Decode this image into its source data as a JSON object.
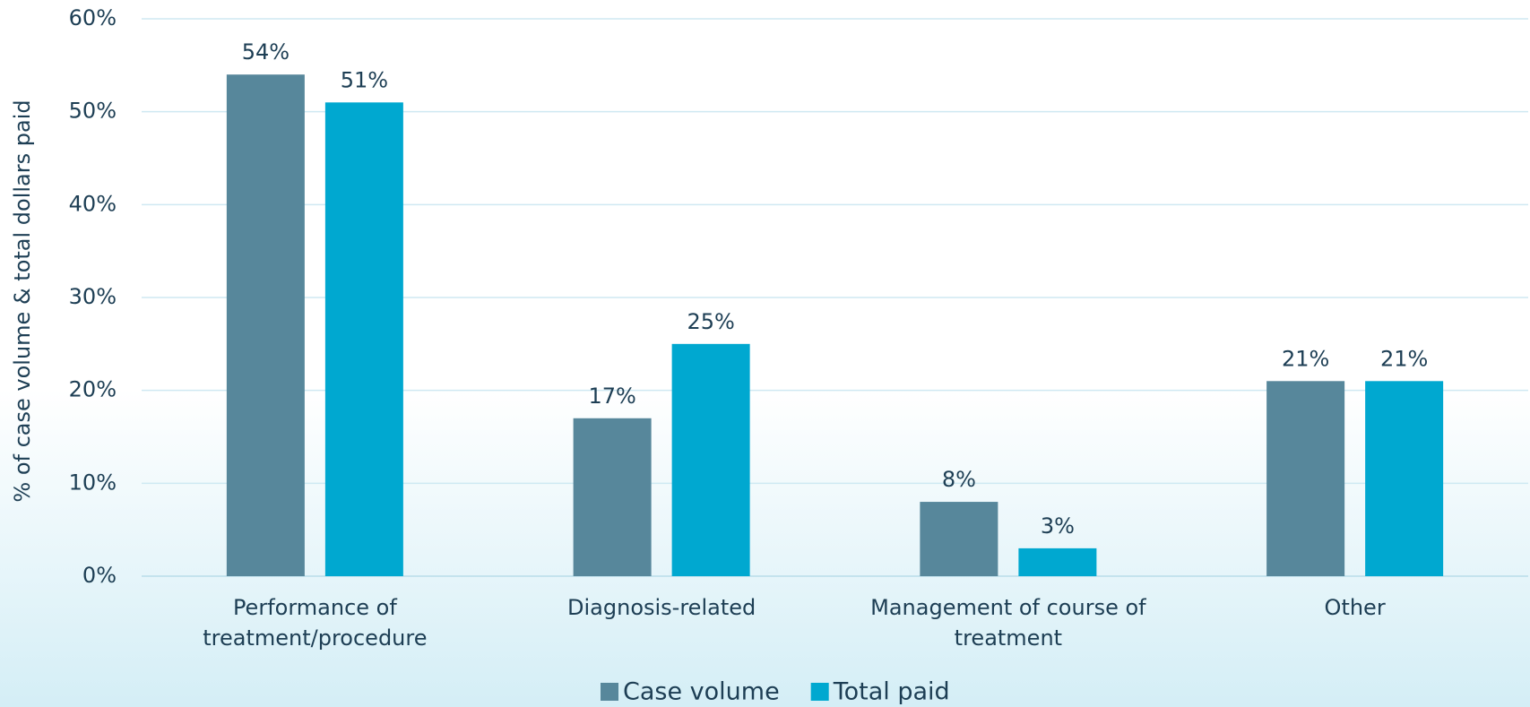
{
  "chart_data": {
    "type": "bar",
    "categories": [
      "Performance of treatment/procedure",
      "Diagnosis-related",
      "Management of course of treatment",
      "Other"
    ],
    "series": [
      {
        "name": "Case volume",
        "color": "#57879b",
        "values": [
          54,
          17,
          8,
          21
        ],
        "value_labels": [
          "54%",
          "17%",
          "8%",
          "21%"
        ]
      },
      {
        "name": "Total paid",
        "color": "#00a8d0",
        "values": [
          51,
          25,
          3,
          21
        ],
        "value_labels": [
          "51%",
          "25%",
          "3%",
          "21%"
        ]
      }
    ],
    "y_label": "% of case volume & total dollars paid",
    "ylim": [
      0,
      60
    ],
    "yticks": [
      {
        "value": 0,
        "label": "0%"
      },
      {
        "value": 10,
        "label": "10%"
      },
      {
        "value": 20,
        "label": "20%"
      },
      {
        "value": 30,
        "label": "30%"
      },
      {
        "value": 40,
        "label": "40%"
      },
      {
        "value": 50,
        "label": "50%"
      },
      {
        "value": 60,
        "label": "60%"
      }
    ],
    "grid": true,
    "legend": "bottom"
  }
}
